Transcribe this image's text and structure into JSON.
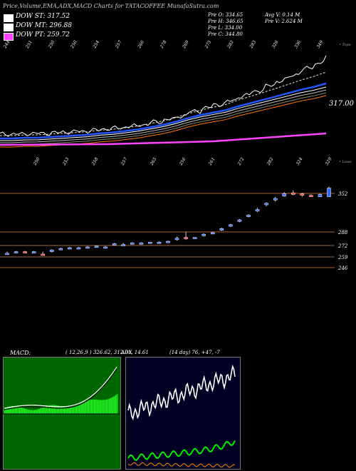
{
  "header": {
    "title": "Price,Volume,EMA,ADX,MACD Charts for TATACOFFEE MunafaSutra.com"
  },
  "legend": [
    {
      "label": "DOW ST: 317.52",
      "color": "#ffffff"
    },
    {
      "label": "DOW MT: 296.88",
      "color": "#ffffff"
    },
    {
      "label": "DOW PT: 259.72",
      "color": "#ff44ff"
    }
  ],
  "info": {
    "pre_o": "Pre  O: 334.65",
    "pre_h": "Pre  H: 346.65",
    "pre_l": "Pre  L: 334.00",
    "pre_c": "Pre  C: 344.80",
    "avg_v": "Avg V: 0.14  M",
    "pre_v": "Pre  V: 2.624  M"
  },
  "top_labels": {
    "topo": "• Topo",
    "lows": "• Lows"
  },
  "ema_label": "317.00",
  "macd_label": "MACD:",
  "macd_values": "( 12,26,9 ) 326.62,  312.01,  14.61",
  "adx_label": "ADX",
  "adx_values": "(14  day) 76,  +47,  -7",
  "colors": {
    "bg": "#000000",
    "up": "#3366ff",
    "down": "#ff3333",
    "ema": "#2255ff",
    "pt": "#ff44ff",
    "macd_bg": "#006600",
    "macd_bar": "#22ff22",
    "adx_green": "#00ee00",
    "adx_orange": "#ff8800"
  },
  "chart_data": [
    {
      "type": "line",
      "name": "price-ema",
      "x_labels_top": [
        "244",
        "251",
        "250",
        "250",
        "254",
        "257",
        "266",
        "278",
        "269",
        "275",
        "282",
        "283",
        "326",
        "336",
        "349"
      ],
      "x_labels_mid": [
        "250",
        "253",
        "258",
        "257",
        "265",
        "256",
        "261",
        "272",
        "282",
        "324",
        "329"
      ],
      "ema_value": 317.0,
      "series": [
        {
          "values": [
            248,
            248,
            249,
            249,
            250,
            251,
            252,
            253,
            255,
            256,
            258,
            260,
            263,
            266,
            270,
            275,
            279,
            282,
            285,
            290,
            294,
            298,
            302,
            306,
            310,
            313,
            317
          ]
        }
      ]
    },
    {
      "type": "candlestick",
      "name": "price-candles",
      "y_ticks": [
        352,
        288,
        272,
        259,
        246
      ],
      "ohlc": [
        [
          262,
          265,
          261,
          263
        ],
        [
          264,
          266,
          263,
          265
        ],
        [
          265,
          266,
          264,
          264
        ],
        [
          264,
          266,
          263,
          265
        ],
        [
          262,
          265,
          260,
          261
        ],
        [
          265,
          268,
          264,
          267
        ],
        [
          268,
          270,
          267,
          269
        ],
        [
          270,
          271,
          269,
          270
        ],
        [
          270,
          271,
          269,
          270
        ],
        [
          271,
          272,
          270,
          271
        ],
        [
          271,
          272,
          270,
          272
        ],
        [
          271,
          272,
          270,
          271
        ],
        [
          274,
          276,
          273,
          275
        ],
        [
          274,
          276,
          273,
          274
        ],
        [
          275,
          277,
          274,
          276
        ],
        [
          276,
          277,
          275,
          276
        ],
        [
          276,
          277,
          275,
          277
        ],
        [
          277,
          278,
          276,
          277
        ],
        [
          277,
          279,
          276,
          278
        ],
        [
          280,
          284,
          279,
          282
        ],
        [
          283,
          290,
          280,
          282
        ],
        [
          282,
          283,
          281,
          283
        ],
        [
          285,
          288,
          284,
          287
        ],
        [
          288,
          290,
          287,
          289
        ],
        [
          292,
          295,
          291,
          294
        ],
        [
          297,
          300,
          296,
          299
        ],
        [
          303,
          306,
          302,
          305
        ],
        [
          309,
          312,
          308,
          311
        ],
        [
          316,
          320,
          315,
          318
        ],
        [
          324,
          327,
          322,
          326
        ],
        [
          330,
          334,
          328,
          332
        ],
        [
          335,
          340,
          334,
          338
        ],
        [
          339,
          342,
          336,
          337
        ],
        [
          338,
          339,
          334,
          336
        ],
        [
          336,
          337,
          334,
          335
        ],
        [
          334,
          338,
          334,
          337
        ],
        [
          334,
          347,
          334,
          345
        ]
      ]
    },
    {
      "type": "line",
      "name": "macd",
      "values": [
        326.62,
        312.01,
        14.61
      ]
    },
    {
      "type": "line",
      "name": "adx",
      "values": [
        76,
        47,
        7
      ]
    }
  ]
}
